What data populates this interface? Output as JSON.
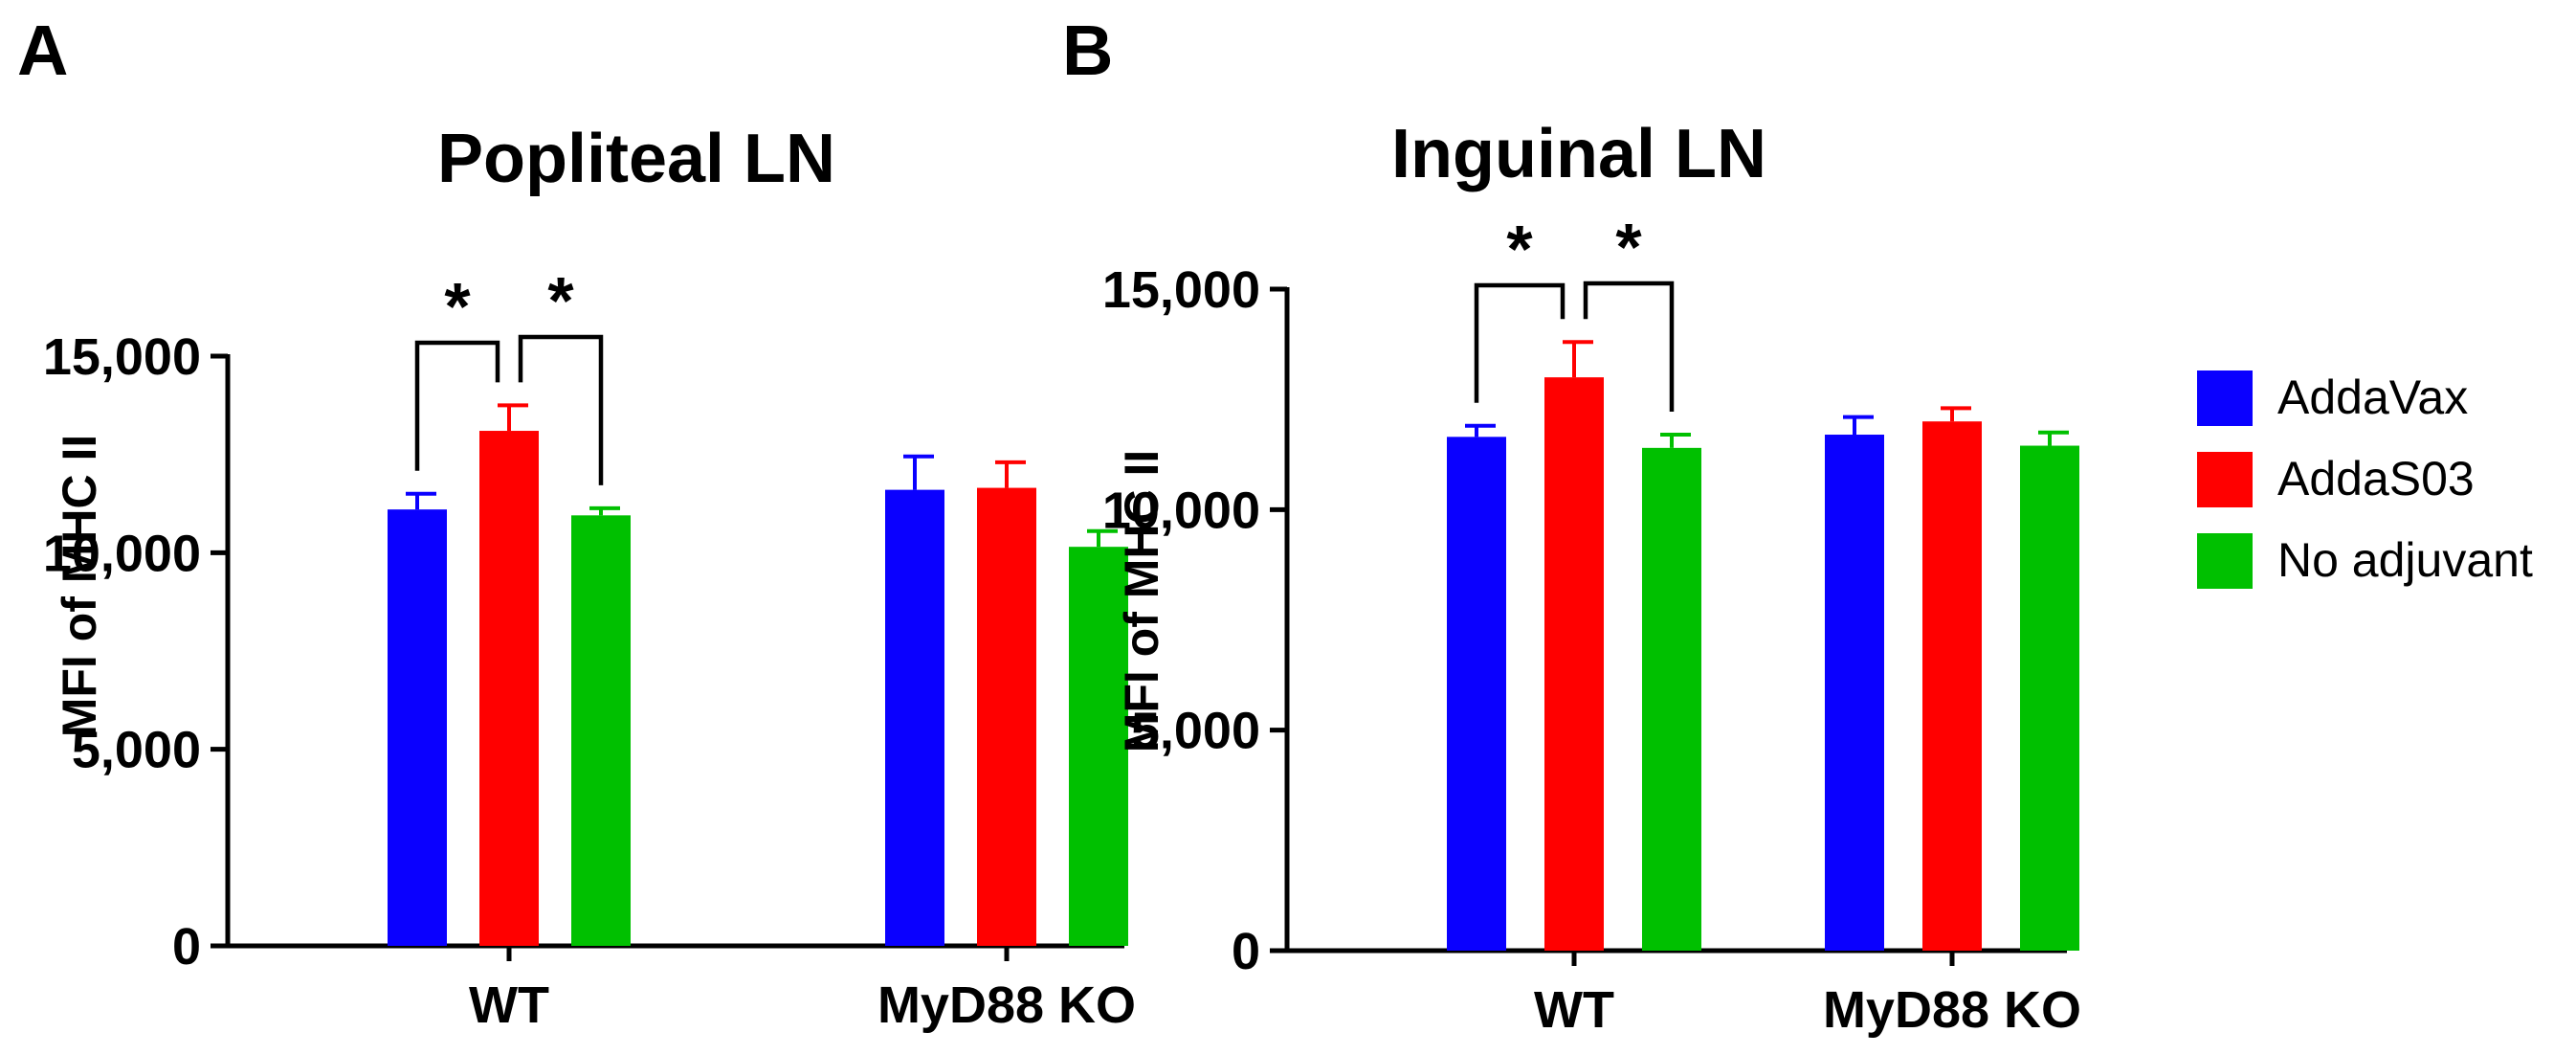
{
  "colors": {
    "AddaVax": "#0a00ff",
    "AddaS03": "#ff0000",
    "No adjuvant": "#00c000",
    "axis": "#000000"
  },
  "legend": [
    {
      "label": "AddaVax",
      "color": "#0a00ff"
    },
    {
      "label": "AddaS03",
      "color": "#ff0000"
    },
    {
      "label": "No adjuvant",
      "color": "#00c000"
    }
  ],
  "chart_data": [
    {
      "panel": "A",
      "type": "bar",
      "title": "Popliteal LN",
      "ylabel": "MFI of MHC II",
      "xlabel": "",
      "ylim": [
        0,
        15000
      ],
      "yticks": [
        0,
        5000,
        10000,
        15000
      ],
      "ytick_labels": [
        "0",
        "5,000",
        "10,000",
        "15,000"
      ],
      "categories": [
        "WT",
        "MyD88 KO"
      ],
      "series": [
        {
          "name": "AddaVax",
          "values": [
            11100,
            11600
          ],
          "errors": [
            400,
            850
          ]
        },
        {
          "name": "AddaS03",
          "values": [
            13100,
            11650
          ],
          "errors": [
            650,
            650
          ]
        },
        {
          "name": "No adjuvant",
          "values": [
            10950,
            10150
          ],
          "errors": [
            180,
            400
          ]
        }
      ],
      "significance": [
        {
          "category": "WT",
          "from": "AddaVax",
          "to": "AddaS03",
          "label": "*"
        },
        {
          "category": "WT",
          "from": "AddaS03",
          "to": "No adjuvant",
          "label": "*"
        }
      ]
    },
    {
      "panel": "B",
      "type": "bar",
      "title": "Inguinal LN",
      "ylabel": "MFI of MHC II",
      "xlabel": "",
      "ylim": [
        0,
        15000
      ],
      "yticks": [
        0,
        5000,
        10000,
        15000
      ],
      "ytick_labels": [
        "0",
        "5,000",
        "10,000",
        "15,000"
      ],
      "categories": [
        "WT",
        "MyD88 KO"
      ],
      "series": [
        {
          "name": "AddaVax",
          "values": [
            11650,
            11700
          ],
          "errors": [
            250,
            400
          ]
        },
        {
          "name": "AddaS03",
          "values": [
            13000,
            12000
          ],
          "errors": [
            800,
            300
          ]
        },
        {
          "name": "No adjuvant",
          "values": [
            11400,
            11450
          ],
          "errors": [
            300,
            300
          ]
        }
      ],
      "significance": [
        {
          "category": "WT",
          "from": "AddaVax",
          "to": "AddaS03",
          "label": "*"
        },
        {
          "category": "WT",
          "from": "AddaS03",
          "to": "No adjuvant",
          "label": "*"
        }
      ]
    }
  ]
}
